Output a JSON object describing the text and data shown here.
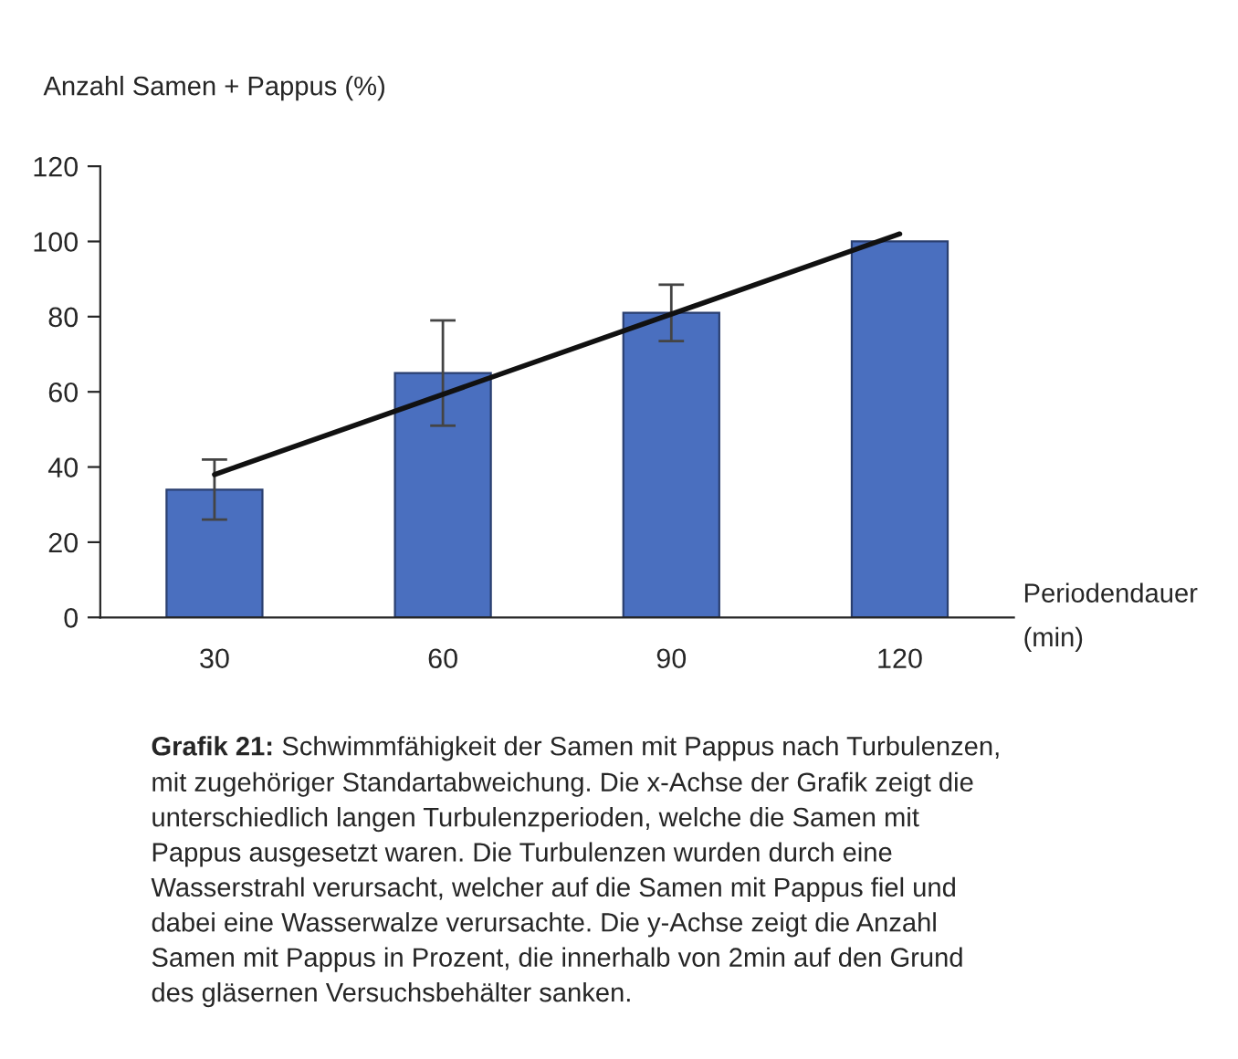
{
  "chart_data": {
    "type": "bar",
    "categories": [
      "30",
      "60",
      "90",
      "120"
    ],
    "series": [
      {
        "color": "#4a6fbf",
        "values": [
          34,
          65,
          81,
          100
        ],
        "errors": [
          8,
          14,
          7.5,
          null
        ]
      },
      {
        "type": "line",
        "color": "#111111",
        "x": [
          "30",
          "120"
        ],
        "values": [
          38,
          102
        ]
      }
    ],
    "ylabel": "Anzahl Samen + Pappus (%)",
    "xlabel": "Periodendauer\n(min)",
    "ylim": [
      0,
      120
    ],
    "yticks": [
      0,
      20,
      40,
      60,
      80,
      100,
      120
    ],
    "grid": false,
    "legend": false,
    "annotations": [
      "Grafik 21:",
      "Schwimmfähigkeit der Samen mit Pappus nach Turbulenzen,\nmit zugehöriger Standartabweichung. Die x-Achse der Grafik zeigt die\nunterschiedlich langen Turbulenzperioden, welche die Samen mit\nPappus ausgesetzt waren. Die Turbulenzen wurden durch eine\nWasserstrahl verursacht, welcher auf die Samen mit Pappus fiel und\ndabei eine Wasserwalze verursachte. Die y-Achse zeigt die Anzahl\nSamen mit Pappus in Prozent, die innerhalb von 2min auf den Grund\ndes gläsernen Versuchsbehälter sanken."
    ]
  }
}
